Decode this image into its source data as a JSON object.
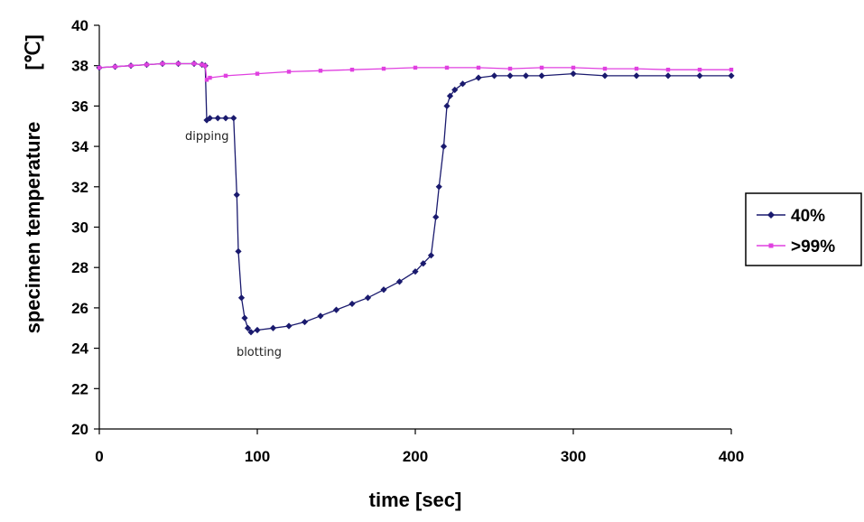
{
  "chart_data": {
    "type": "line",
    "xlabel": "time [sec]",
    "ylabel": "specimen temperature",
    "ylabel_unit": "[℃]",
    "xlim": [
      0,
      400
    ],
    "ylim": [
      20,
      40
    ],
    "x_ticks": [
      "0",
      "100",
      "200",
      "300",
      "400"
    ],
    "y_ticks": [
      "20",
      "22",
      "24",
      "26",
      "28",
      "30",
      "32",
      "34",
      "36",
      "38",
      "40"
    ],
    "grid": false,
    "legend_position": "right",
    "annotations": [
      {
        "text": "dipping",
        "x": 67,
        "y": 34.5
      },
      {
        "text": "blotting",
        "x": 100,
        "y": 23.8
      }
    ],
    "series": [
      {
        "name": "40%",
        "color": "#1a1a6e",
        "marker": "diamond",
        "x": [
          0,
          10,
          20,
          30,
          40,
          50,
          60,
          65,
          67,
          68,
          70,
          75,
          80,
          85,
          87,
          88,
          90,
          92,
          94,
          96,
          100,
          110,
          120,
          130,
          140,
          150,
          160,
          170,
          180,
          190,
          200,
          205,
          210,
          213,
          215,
          218,
          220,
          222,
          225,
          230,
          240,
          250,
          260,
          270,
          280,
          300,
          320,
          340,
          360,
          380,
          400
        ],
        "values": [
          37.9,
          37.95,
          38.0,
          38.05,
          38.1,
          38.1,
          38.1,
          38.05,
          38.0,
          35.3,
          35.4,
          35.4,
          35.4,
          35.4,
          31.6,
          28.8,
          26.5,
          25.5,
          25.0,
          24.8,
          24.9,
          25.0,
          25.1,
          25.3,
          25.6,
          25.9,
          26.2,
          26.5,
          26.9,
          27.3,
          27.8,
          28.2,
          28.6,
          30.5,
          32.0,
          34.0,
          36.0,
          36.5,
          36.8,
          37.1,
          37.4,
          37.5,
          37.5,
          37.5,
          37.5,
          37.6,
          37.5,
          37.5,
          37.5,
          37.5,
          37.5
        ]
      },
      {
        "name": ">99%",
        "color": "#e040e0",
        "marker": "square",
        "x": [
          0,
          10,
          20,
          30,
          40,
          50,
          60,
          65,
          67,
          68,
          70,
          80,
          100,
          120,
          140,
          160,
          180,
          200,
          220,
          240,
          260,
          280,
          300,
          320,
          340,
          360,
          380,
          400
        ],
        "values": [
          37.9,
          37.95,
          38.0,
          38.05,
          38.1,
          38.1,
          38.1,
          38.05,
          38.0,
          37.3,
          37.4,
          37.5,
          37.6,
          37.7,
          37.75,
          37.8,
          37.85,
          37.9,
          37.9,
          37.9,
          37.85,
          37.9,
          37.9,
          37.85,
          37.85,
          37.8,
          37.8,
          37.8
        ]
      }
    ]
  }
}
